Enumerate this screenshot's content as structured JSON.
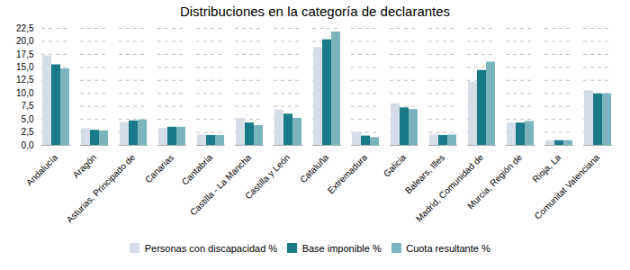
{
  "chart_data": {
    "type": "bar",
    "title": "Distribuciones en la categoría de declarantes",
    "categories": [
      "Andalucía",
      "Aragón",
      "Asturias, Principado de",
      "Canarias",
      "Cantabria",
      "Castilla - La Mancha",
      "Castilla y León",
      "Cataluña",
      "Extremadura",
      "Galicia",
      "Balears, Illes",
      "Madrid, Comunidad de",
      "Murcia, Región de",
      "Rioja, La",
      "Comunitat Valenciana"
    ],
    "series": [
      {
        "name": "Personas con discapacidad %",
        "color": "#d4dde8",
        "values": [
          17.2,
          3.2,
          4.4,
          3.3,
          2.0,
          5.2,
          6.8,
          18.8,
          2.5,
          8.0,
          2.0,
          12.2,
          4.3,
          0.9,
          10.5
        ]
      },
      {
        "name": "Base imponible %",
        "color": "#1a7a8a",
        "values": [
          15.5,
          2.9,
          4.7,
          3.5,
          1.9,
          4.3,
          6.0,
          20.3,
          1.8,
          7.2,
          1.9,
          14.4,
          4.3,
          0.9,
          9.9
        ]
      },
      {
        "name": "Cuota resultante %",
        "color": "#7ab5be",
        "values": [
          14.7,
          2.8,
          4.9,
          3.5,
          1.9,
          3.8,
          5.2,
          21.8,
          1.5,
          6.9,
          2.0,
          16.0,
          4.6,
          0.9,
          9.9
        ]
      }
    ],
    "ylim": [
      0,
      22.5
    ],
    "yticks": [
      {
        "value": 0.0,
        "label": "0,0"
      },
      {
        "value": 2.5,
        "label": "2,5"
      },
      {
        "value": 5.0,
        "label": "5,0"
      },
      {
        "value": 7.5,
        "label": "7,5"
      },
      {
        "value": 10.0,
        "label": "10,0"
      },
      {
        "value": 12.5,
        "label": "12,5"
      },
      {
        "value": 15.0,
        "label": "15,0"
      },
      {
        "value": 17.5,
        "label": "17,5"
      },
      {
        "value": 20.0,
        "label": "20,0"
      },
      {
        "value": 22.5,
        "label": "22,5"
      }
    ],
    "grid": true,
    "legend": "bottom"
  }
}
